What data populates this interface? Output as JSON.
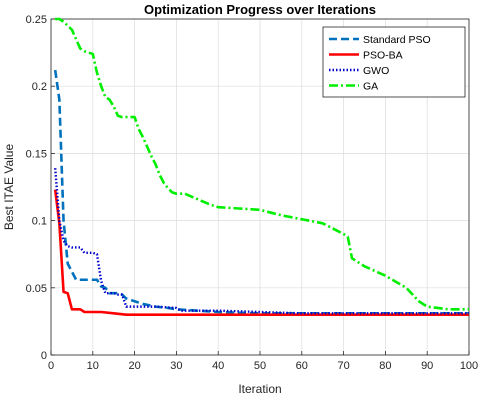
{
  "chart_data": {
    "type": "line",
    "title": "Optimization Progress over Iterations",
    "xlabel": "Iteration",
    "ylabel": "Best ITAE Value",
    "xlim": [
      0,
      100
    ],
    "ylim": [
      0,
      0.25
    ],
    "xticks": [
      "0",
      "10",
      "20",
      "30",
      "40",
      "50",
      "60",
      "70",
      "80",
      "90",
      "100"
    ],
    "yticks": [
      "0",
      "0.05",
      "0.1",
      "0.15",
      "0.2",
      "0.25"
    ],
    "grid": true,
    "legend_position": "top-right",
    "series": [
      {
        "name": "Standard PSO",
        "color": "#0072BD",
        "dash": "dashed",
        "x": [
          1,
          2,
          3,
          4,
          5,
          6,
          7,
          8,
          9,
          10,
          11,
          12,
          13,
          14,
          15,
          16,
          17,
          18,
          20,
          22,
          25,
          28,
          30,
          35,
          40,
          50,
          60,
          70,
          80,
          90,
          100
        ],
        "y": [
          0.212,
          0.19,
          0.1,
          0.068,
          0.062,
          0.056,
          0.056,
          0.056,
          0.056,
          0.056,
          0.056,
          0.051,
          0.05,
          0.046,
          0.046,
          0.046,
          0.045,
          0.042,
          0.04,
          0.038,
          0.036,
          0.035,
          0.034,
          0.033,
          0.032,
          0.031,
          0.031,
          0.031,
          0.031,
          0.031,
          0.031
        ]
      },
      {
        "name": "PSO-BA",
        "color": "#FF0000",
        "dash": "solid",
        "x": [
          1,
          2,
          3,
          4,
          5,
          6,
          7,
          8,
          9,
          10,
          12,
          15,
          18,
          20,
          30,
          40,
          50,
          60,
          70,
          80,
          90,
          100
        ],
        "y": [
          0.123,
          0.098,
          0.047,
          0.046,
          0.034,
          0.034,
          0.034,
          0.032,
          0.032,
          0.032,
          0.032,
          0.031,
          0.03,
          0.03,
          0.03,
          0.03,
          0.03,
          0.03,
          0.03,
          0.03,
          0.03,
          0.03
        ]
      },
      {
        "name": "GWO",
        "color": "#0000CC",
        "dash": "dotted",
        "x": [
          1,
          2,
          3,
          4,
          5,
          6,
          7,
          8,
          9,
          10,
          11,
          12,
          13,
          14,
          15,
          16,
          17,
          18,
          19,
          20,
          25,
          30,
          31,
          35,
          40,
          50,
          60,
          70,
          80,
          90,
          100
        ],
        "y": [
          0.139,
          0.1,
          0.085,
          0.081,
          0.08,
          0.08,
          0.08,
          0.076,
          0.076,
          0.076,
          0.075,
          0.055,
          0.046,
          0.046,
          0.046,
          0.045,
          0.045,
          0.036,
          0.036,
          0.036,
          0.036,
          0.035,
          0.033,
          0.033,
          0.033,
          0.032,
          0.031,
          0.031,
          0.031,
          0.031,
          0.031
        ]
      },
      {
        "name": "GA",
        "color": "#00EE00",
        "dash": "dashdot",
        "x": [
          1,
          2,
          3,
          4,
          5,
          6,
          7,
          8,
          9,
          10,
          11,
          12,
          13,
          14,
          15,
          16,
          17,
          18,
          19,
          20,
          21,
          22,
          23,
          24,
          25,
          26,
          27,
          28,
          29,
          30,
          32,
          35,
          38,
          40,
          45,
          50,
          55,
          60,
          65,
          70,
          71,
          72,
          75,
          80,
          85,
          88,
          90,
          95,
          100
        ],
        "y": [
          0.25,
          0.25,
          0.248,
          0.245,
          0.242,
          0.235,
          0.228,
          0.226,
          0.225,
          0.224,
          0.21,
          0.2,
          0.192,
          0.19,
          0.185,
          0.178,
          0.177,
          0.177,
          0.177,
          0.177,
          0.168,
          0.162,
          0.155,
          0.148,
          0.142,
          0.134,
          0.128,
          0.124,
          0.121,
          0.12,
          0.12,
          0.116,
          0.112,
          0.11,
          0.109,
          0.108,
          0.104,
          0.101,
          0.098,
          0.09,
          0.088,
          0.072,
          0.066,
          0.059,
          0.05,
          0.04,
          0.036,
          0.034,
          0.034
        ]
      }
    ]
  }
}
